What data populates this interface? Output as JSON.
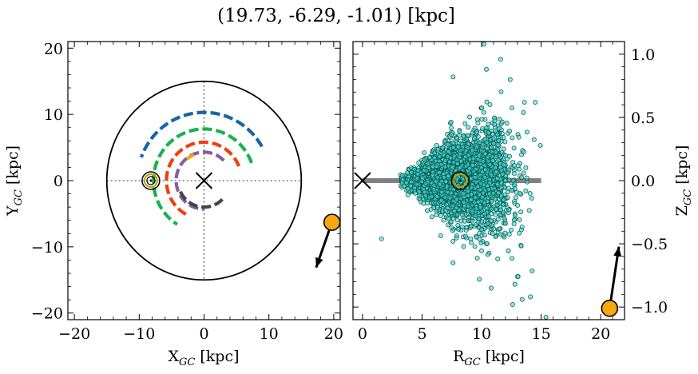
{
  "figure": {
    "title": "(19.73, -6.29, -1.01) [kpc]"
  },
  "chart_data": [
    {
      "type": "scatter",
      "panel": "left",
      "xlabel": "X",
      "xlabel_sub": "GC",
      "xlabel_unit": " [kpc]",
      "ylabel": "Y",
      "ylabel_sub": "GC",
      "ylabel_unit": " [kpc]",
      "xlim": [
        -21,
        21
      ],
      "ylim": [
        -21,
        21
      ],
      "xticks": [
        -20,
        -10,
        0,
        10,
        20
      ],
      "yticks": [
        -20,
        -10,
        0,
        10,
        20
      ],
      "grid": false,
      "boundary_circle_radius": 15,
      "galactic_center": [
        0,
        0
      ],
      "sun_position": [
        -8.2,
        0
      ],
      "object_position": [
        19.73,
        -6.29
      ],
      "object_direction": [
        -0.35,
        -1.0
      ],
      "object_color": "#f5a70f",
      "spiral_arms": [
        {
          "color": "#1565a8",
          "radius": 10.3,
          "theta_start": 30,
          "theta_end": 160
        },
        {
          "color": "#17b34a",
          "radius": 7.8,
          "theta_start": 20,
          "theta_end": 238
        },
        {
          "color": "#f0400f",
          "radius": 5.8,
          "theta_start": 22,
          "theta_end": 245
        },
        {
          "color": "#865f9f",
          "radius": 4.3,
          "theta_start": 45,
          "theta_end": 270
        },
        {
          "color": "#444444",
          "radius": 4.0,
          "theta_start": -45,
          "theta_end": -162
        },
        {
          "color": "#f5a70f",
          "radius": 4.2,
          "theta_start": 112,
          "theta_end": 128
        }
      ]
    },
    {
      "type": "scatter",
      "panel": "right",
      "xlabel": "R",
      "xlabel_sub": "GC",
      "xlabel_unit": " [kpc]",
      "ylabel": "Z",
      "ylabel_sub": "GC",
      "ylabel_unit": " [kpc]",
      "xlim": [
        -0.8,
        22
      ],
      "ylim": [
        -1.1,
        1.1
      ],
      "xticks": [
        0,
        5,
        10,
        15,
        20
      ],
      "yticks": [
        1.0,
        0.5,
        0.0,
        -0.5,
        -1.0
      ],
      "ytick_labels": [
        "1.0",
        "0.5",
        "0.0",
        "−0.5",
        "−1.0"
      ],
      "grid": false,
      "disk_band": {
        "x0": 0,
        "x1": 15,
        "y": 0,
        "color": "#808080"
      },
      "galactic_center": [
        0,
        0
      ],
      "sun_position": [
        8.2,
        0
      ],
      "object_position": [
        20.75,
        -1.01
      ],
      "object_direction": [
        0.15,
        1.0
      ],
      "object_color": "#f5a70f",
      "points_color": "#40e0d0",
      "points_approx_count": 3000,
      "outlier_points": [
        {
          "x": 10.2,
          "y": 1.08
        },
        {
          "x": 11.6,
          "y": 0.96
        },
        {
          "x": 12.4,
          "y": 0.8
        },
        {
          "x": 10.4,
          "y": 0.88
        },
        {
          "x": 7.6,
          "y": 0.82
        },
        {
          "x": 13.6,
          "y": 0.62
        },
        {
          "x": 14.5,
          "y": 0.62
        },
        {
          "x": 1.6,
          "y": -0.46
        },
        {
          "x": 7.6,
          "y": -0.65
        },
        {
          "x": 10.8,
          "y": -0.85
        },
        {
          "x": 12.6,
          "y": -0.98
        },
        {
          "x": 13.4,
          "y": -0.94
        },
        {
          "x": 14.1,
          "y": -0.92
        },
        {
          "x": 15.4,
          "y": -1.08
        },
        {
          "x": 12.8,
          "y": -0.82
        },
        {
          "x": 9.8,
          "y": -0.78
        }
      ]
    }
  ]
}
